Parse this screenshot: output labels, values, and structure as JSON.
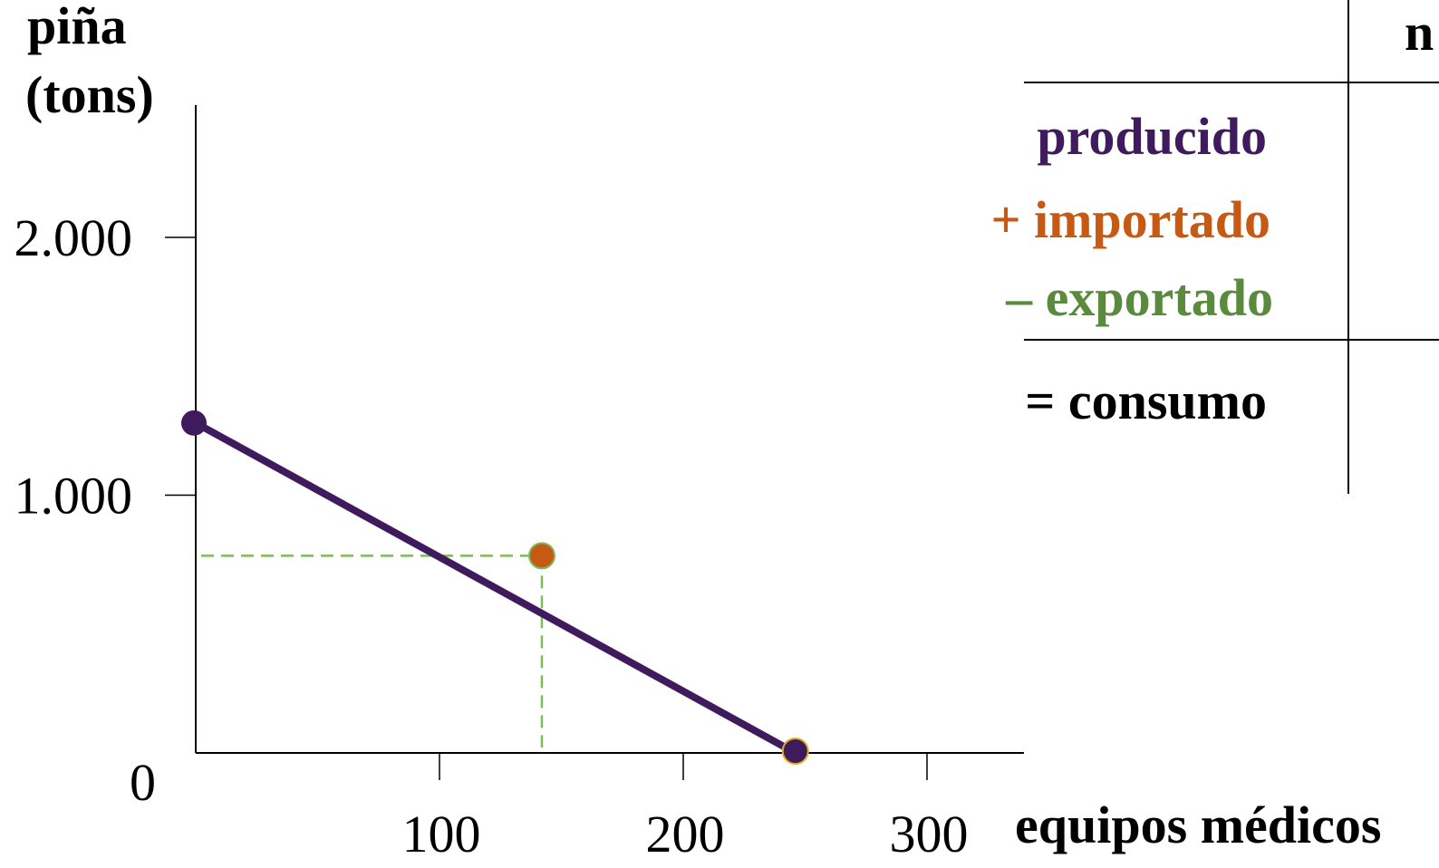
{
  "colors": {
    "ppf": "#3f1a5c",
    "import": "#c65a15",
    "export": "#5a8a3c",
    "guide": "#7dbb5b",
    "axis": "#000000",
    "point_outline": "#e0b020"
  },
  "chart_data": {
    "type": "line",
    "title": "",
    "ylabel_line1": "piña",
    "ylabel_line2": "(tons)",
    "xlabel": "equipos médicos",
    "xlim": [
      0,
      340
    ],
    "ylim": [
      0,
      2500
    ],
    "y_ticks": [
      {
        "value": 0,
        "label": "0"
      },
      {
        "value": 1000,
        "label": "1.000"
      },
      {
        "value": 2000,
        "label": "2.000"
      }
    ],
    "x_ticks": [
      {
        "value": 100,
        "label": "100"
      },
      {
        "value": 200,
        "label": "200"
      },
      {
        "value": 300,
        "label": "300"
      }
    ],
    "series": [
      {
        "points": [
          {
            "x": 0,
            "y": 1280
          },
          {
            "x": 246,
            "y": 0
          }
        ]
      }
    ],
    "consumption_point": {
      "x": 142,
      "y": 765
    },
    "grid": false
  },
  "table": {
    "header_partial": "n",
    "rows": [
      {
        "label": "producido",
        "role": "produced"
      },
      {
        "label": "+ importado",
        "role": "imported"
      },
      {
        "label": "– exportado",
        "role": "exported"
      },
      {
        "label": "= consumo",
        "role": "consumption"
      }
    ]
  }
}
